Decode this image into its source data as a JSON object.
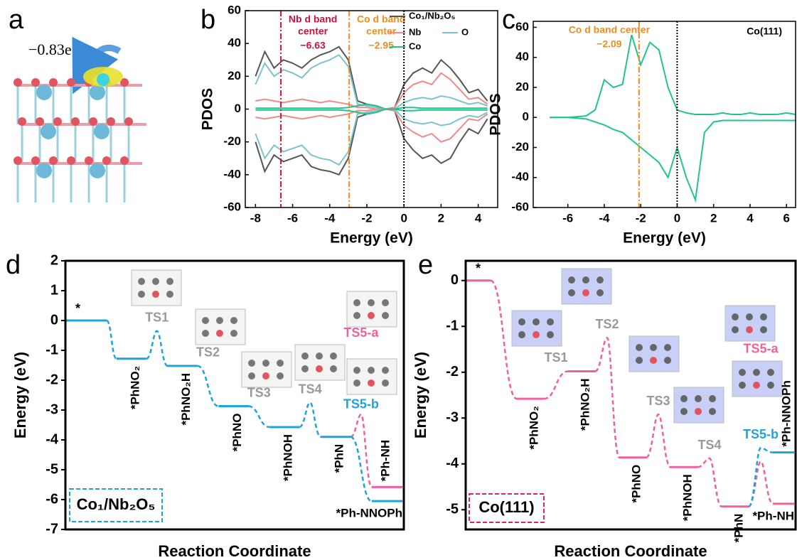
{
  "panel_a": {
    "label": "a",
    "charge": "−0.83e"
  },
  "chart_data": [
    {
      "type": "line",
      "panel_label": "b",
      "xlabel": "Energy (eV)",
      "ylabel": "PDOS",
      "xlim": [
        -8.55,
        5.05
      ],
      "ylim": [
        -60,
        60
      ],
      "xticks": [
        -8,
        -6,
        -4,
        -2,
        0,
        2,
        4
      ],
      "yticks": [
        -60,
        -40,
        -20,
        0,
        20,
        40,
        60
      ],
      "x": [
        -8,
        -7.5,
        -7,
        -6.5,
        -6,
        -5.5,
        -5,
        -4.5,
        -4,
        -3.5,
        -3,
        -2.5,
        -2,
        -1.5,
        -1,
        -0.5,
        0,
        0.5,
        1,
        1.5,
        2,
        2.5,
        3,
        3.5,
        4,
        4.5
      ],
      "series": [
        {
          "name": "Co₁/Nb₂O₅",
          "color": "#555555",
          "values": [
            20,
            35,
            25,
            30,
            28,
            25,
            30,
            33,
            35,
            38,
            30,
            5,
            3,
            2,
            0,
            1,
            15,
            22,
            25,
            22,
            30,
            25,
            18,
            10,
            12,
            5
          ]
        },
        {
          "name": "Nb",
          "color": "#f08a8a",
          "values": [
            5,
            6,
            5,
            4,
            5,
            6,
            5,
            4,
            5,
            4,
            3,
            1,
            1,
            0,
            0,
            1,
            10,
            15,
            17,
            15,
            22,
            18,
            12,
            6,
            7,
            3
          ]
        },
        {
          "name": "O",
          "color": "#7cc4cc",
          "values": [
            15,
            28,
            20,
            24,
            22,
            19,
            25,
            28,
            30,
            33,
            26,
            3,
            2,
            1,
            0,
            0,
            4,
            6,
            7,
            6,
            8,
            7,
            5,
            3,
            4,
            2
          ]
        },
        {
          "name": "Co",
          "color": "#22c48a",
          "values": [
            0.5,
            0.5,
            0.5,
            0.5,
            0.5,
            0.5,
            0.5,
            0.5,
            0.5,
            0.5,
            1,
            2,
            3,
            2,
            0,
            0,
            1,
            1,
            0.5,
            0.5,
            0.5,
            0.5,
            0.5,
            0.5,
            0.5,
            0.5
          ]
        },
        {
          "color": "#555555",
          "values": [
            -20,
            -38,
            -28,
            -32,
            -30,
            -28,
            -35,
            -37,
            -38,
            -40,
            -30,
            -5,
            -3,
            -2,
            0,
            -1,
            -18,
            -25,
            -30,
            -28,
            -33,
            -30,
            -20,
            -12,
            -15,
            -6
          ]
        },
        {
          "color": "#f08a8a",
          "values": [
            -5,
            -6,
            -5,
            -4,
            -5,
            -6,
            -5,
            -4,
            -5,
            -4,
            -3,
            -1,
            -1,
            0,
            0,
            -1,
            -10,
            -14,
            -17,
            -15,
            -20,
            -18,
            -12,
            -6,
            -7,
            -3
          ]
        },
        {
          "color": "#7cc4cc",
          "values": [
            -15,
            -30,
            -22,
            -26,
            -24,
            -22,
            -28,
            -30,
            -31,
            -34,
            -26,
            -3,
            -2,
            -1,
            0,
            0,
            -6,
            -8,
            -9,
            -8,
            -10,
            -9,
            -6,
            -4,
            -5,
            -2
          ]
        },
        {
          "color": "#22c48a",
          "values": [
            -0.5,
            -0.5,
            -0.5,
            -0.5,
            -0.5,
            -0.5,
            -0.5,
            -0.5,
            -0.5,
            -0.5,
            -1,
            -2,
            -3,
            -2,
            0,
            0,
            -1,
            -1,
            -0.5,
            -0.5,
            -0.5,
            -0.5,
            -0.5,
            -0.5,
            -0.5,
            -0.5
          ]
        }
      ],
      "vlines": [
        {
          "value": -6.63,
          "color": "#c8143c",
          "dash": "8 3 2 3",
          "text": [
            "Nb d band",
            "center"
          ],
          "label": "−6.63"
        },
        {
          "value": -2.95,
          "color": "#f08c1e",
          "dash": "8 3 2 3",
          "text": [
            "Co d band",
            "center"
          ],
          "label": "−2.95"
        },
        {
          "value": 0,
          "color": "#000000",
          "dash": "2 2"
        }
      ]
    },
    {
      "type": "line",
      "panel_label": "c",
      "xlabel": "Energy (eV)",
      "ylabel": "PDOS",
      "corner_label": "Co(111)",
      "xlim": [
        -7.9,
        6.5
      ],
      "ylim": [
        -60,
        64
      ],
      "xticks": [
        -6,
        -4,
        -2,
        0,
        2,
        4,
        6
      ],
      "yticks": [
        -60,
        -40,
        -20,
        0,
        20,
        40,
        60
      ],
      "x": [
        -7,
        -6.5,
        -6,
        -5.5,
        -5,
        -4.5,
        -4,
        -3.5,
        -3,
        -2.5,
        -2,
        -1.5,
        -1,
        -0.5,
        0,
        0.5,
        1,
        1.5,
        2,
        2.5,
        3,
        3.5,
        4,
        4.5,
        5,
        5.5,
        6,
        6.5
      ],
      "series": [
        {
          "color": "#22c48a",
          "values": [
            0,
            0,
            0,
            0.5,
            1,
            5,
            25,
            20,
            22,
            55,
            35,
            50,
            45,
            20,
            5,
            3,
            2,
            2,
            2,
            3,
            2,
            2,
            3,
            2,
            2,
            2,
            3,
            2
          ]
        },
        {
          "color": "#22c48a",
          "values": [
            0,
            0,
            0,
            -0.5,
            -1,
            -3,
            -5,
            -8,
            -10,
            -15,
            -20,
            -25,
            -30,
            -40,
            -20,
            -40,
            -55,
            -10,
            -3,
            -2,
            -2,
            -2,
            -2,
            -2,
            -2,
            -2,
            -2,
            -2
          ]
        }
      ],
      "vlines": [
        {
          "value": -2.09,
          "color": "#f08c1e",
          "dash": "8 3 2 3",
          "text": [
            "Co d band center"
          ],
          "label": "−2.09"
        },
        {
          "value": 0,
          "color": "#000000",
          "dash": "2 2"
        }
      ]
    },
    {
      "type": "energy_profile",
      "panel_label": "d",
      "xlabel": "Reaction Coordinate",
      "ylabel": "Energy (eV)",
      "ylim": [
        -7,
        2
      ],
      "yticks": [
        -7,
        -6,
        -5,
        -4,
        -3,
        -2,
        -1,
        0,
        1,
        2
      ],
      "legend_label": "Co₁/Nb₂O₅",
      "legend_color": "#1ca4dc",
      "levels": [
        {
          "label": "*",
          "value": 0,
          "color": "#1ca4dc"
        },
        {
          "label": "*PhNO₂",
          "value": -1.28,
          "color": "#1ca4dc"
        },
        {
          "label": "*PhNO₂H",
          "value": -1.52,
          "color": "#1ca4dc",
          "ts": -0.35,
          "ts_label": "TS1"
        },
        {
          "label": "*PhNO",
          "value": -2.87,
          "color": "#1ca4dc",
          "ts_label": "TS2"
        },
        {
          "label": "*PhNOH",
          "value": -3.57,
          "color": "#1ca4dc",
          "ts_label": "TS3"
        },
        {
          "label": "*PhN",
          "value": -3.9,
          "color": "#1ca4dc",
          "ts": -2.75,
          "ts_label": "TS4"
        }
      ],
      "branches": [
        {
          "label": "*Ph-NH",
          "value": -5.58,
          "color": "#f0609c",
          "ts": -3.15,
          "ts_label": "TS5-a"
        },
        {
          "label": "*Ph-NNOPh",
          "value": -6.05,
          "color": "#1ca4dc",
          "ts_label": "TS5-b"
        }
      ]
    },
    {
      "type": "energy_profile",
      "panel_label": "e",
      "xlabel": "Reaction Coordinate",
      "ylabel": "Energy (eV)",
      "ylim": [
        -5.43,
        0.43
      ],
      "yticks": [
        -5,
        -4,
        -3,
        -2,
        -1,
        0
      ],
      "legend_label": "Co(111)",
      "legend_color": "#d6246e",
      "levels": [
        {
          "label": "*",
          "value": 0,
          "color": "#f0609c"
        },
        {
          "label": "*PhNO₂",
          "value": -2.58,
          "color": "#f0609c"
        },
        {
          "label": "*PhNO₂H",
          "value": -1.98,
          "color": "#f0609c",
          "ts_label": "TS1"
        },
        {
          "label": "*PhNO",
          "value": -3.86,
          "color": "#f0609c",
          "ts": -1.25,
          "ts_label": "TS2"
        },
        {
          "label": "*PhNOH",
          "value": -4.07,
          "color": "#f0609c",
          "ts": -2.92,
          "ts_label": "TS3"
        },
        {
          "label": "*PhN",
          "value": -4.93,
          "color": "#f0609c",
          "ts": -3.88,
          "ts_label": "TS4"
        }
      ],
      "branches": [
        {
          "label": "*Ph-NH",
          "value": -4.87,
          "color": "#f0609c",
          "ts": -3.95,
          "ts_label": "TS5-a"
        },
        {
          "label": "*Ph-NNOPh",
          "value": -3.75,
          "color": "#1ca4dc",
          "ts": -3.65,
          "ts_label": "TS5-b"
        }
      ]
    }
  ]
}
